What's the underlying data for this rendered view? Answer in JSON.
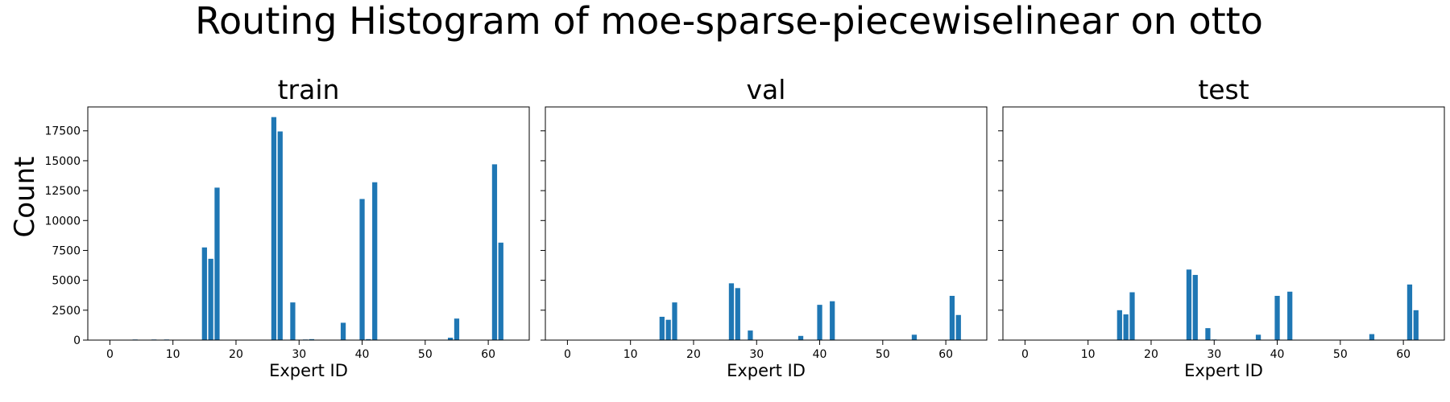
{
  "figure": {
    "suptitle": "Routing Histogram of moe-sparse-piecewiselinear on otto",
    "ylabel": "Count",
    "bar_color": "#1f77b4"
  },
  "chart_data": [
    {
      "type": "bar",
      "title": "train",
      "xlabel": "Expert ID",
      "ylabel": "Count",
      "xlim": [
        -3.5,
        66.5
      ],
      "ylim": [
        0,
        19500
      ],
      "xticks": [
        0,
        10,
        20,
        30,
        40,
        50,
        60
      ],
      "yticks": [
        0,
        2500,
        5000,
        7500,
        10000,
        12500,
        15000,
        17500
      ],
      "x": [
        0,
        4,
        7,
        9,
        15,
        16,
        17,
        23,
        24,
        26,
        27,
        29,
        31,
        32,
        37,
        40,
        41,
        42,
        52,
        54,
        55,
        58,
        61,
        62
      ],
      "values": [
        30,
        50,
        50,
        50,
        7750,
        6800,
        12750,
        30,
        30,
        18650,
        17450,
        3150,
        50,
        80,
        1450,
        11800,
        80,
        13200,
        30,
        200,
        1800,
        30,
        14700,
        8150
      ]
    },
    {
      "type": "bar",
      "title": "val",
      "xlabel": "Expert ID",
      "ylabel": "",
      "xlim": [
        -3.5,
        66.5
      ],
      "ylim": [
        0,
        19500
      ],
      "xticks": [
        0,
        10,
        20,
        30,
        40,
        50,
        60
      ],
      "x": [
        4,
        7,
        9,
        15,
        16,
        17,
        26,
        27,
        29,
        32,
        37,
        40,
        42,
        54,
        55,
        61,
        62
      ],
      "values": [
        30,
        30,
        30,
        1950,
        1700,
        3150,
        4750,
        4350,
        800,
        30,
        350,
        2950,
        3250,
        30,
        450,
        3700,
        2100
      ]
    },
    {
      "type": "bar",
      "title": "test",
      "xlabel": "Expert ID",
      "ylabel": "",
      "xlim": [
        -3.5,
        66.5
      ],
      "ylim": [
        0,
        19500
      ],
      "xticks": [
        0,
        10,
        20,
        30,
        40,
        50,
        60
      ],
      "x": [
        4,
        7,
        9,
        15,
        16,
        17,
        24,
        26,
        27,
        29,
        30,
        32,
        37,
        40,
        42,
        54,
        55,
        58,
        61,
        62
      ],
      "values": [
        30,
        30,
        30,
        2500,
        2150,
        4000,
        30,
        5900,
        5450,
        1000,
        50,
        30,
        450,
        3700,
        4050,
        30,
        500,
        30,
        4650,
        2500
      ]
    }
  ]
}
